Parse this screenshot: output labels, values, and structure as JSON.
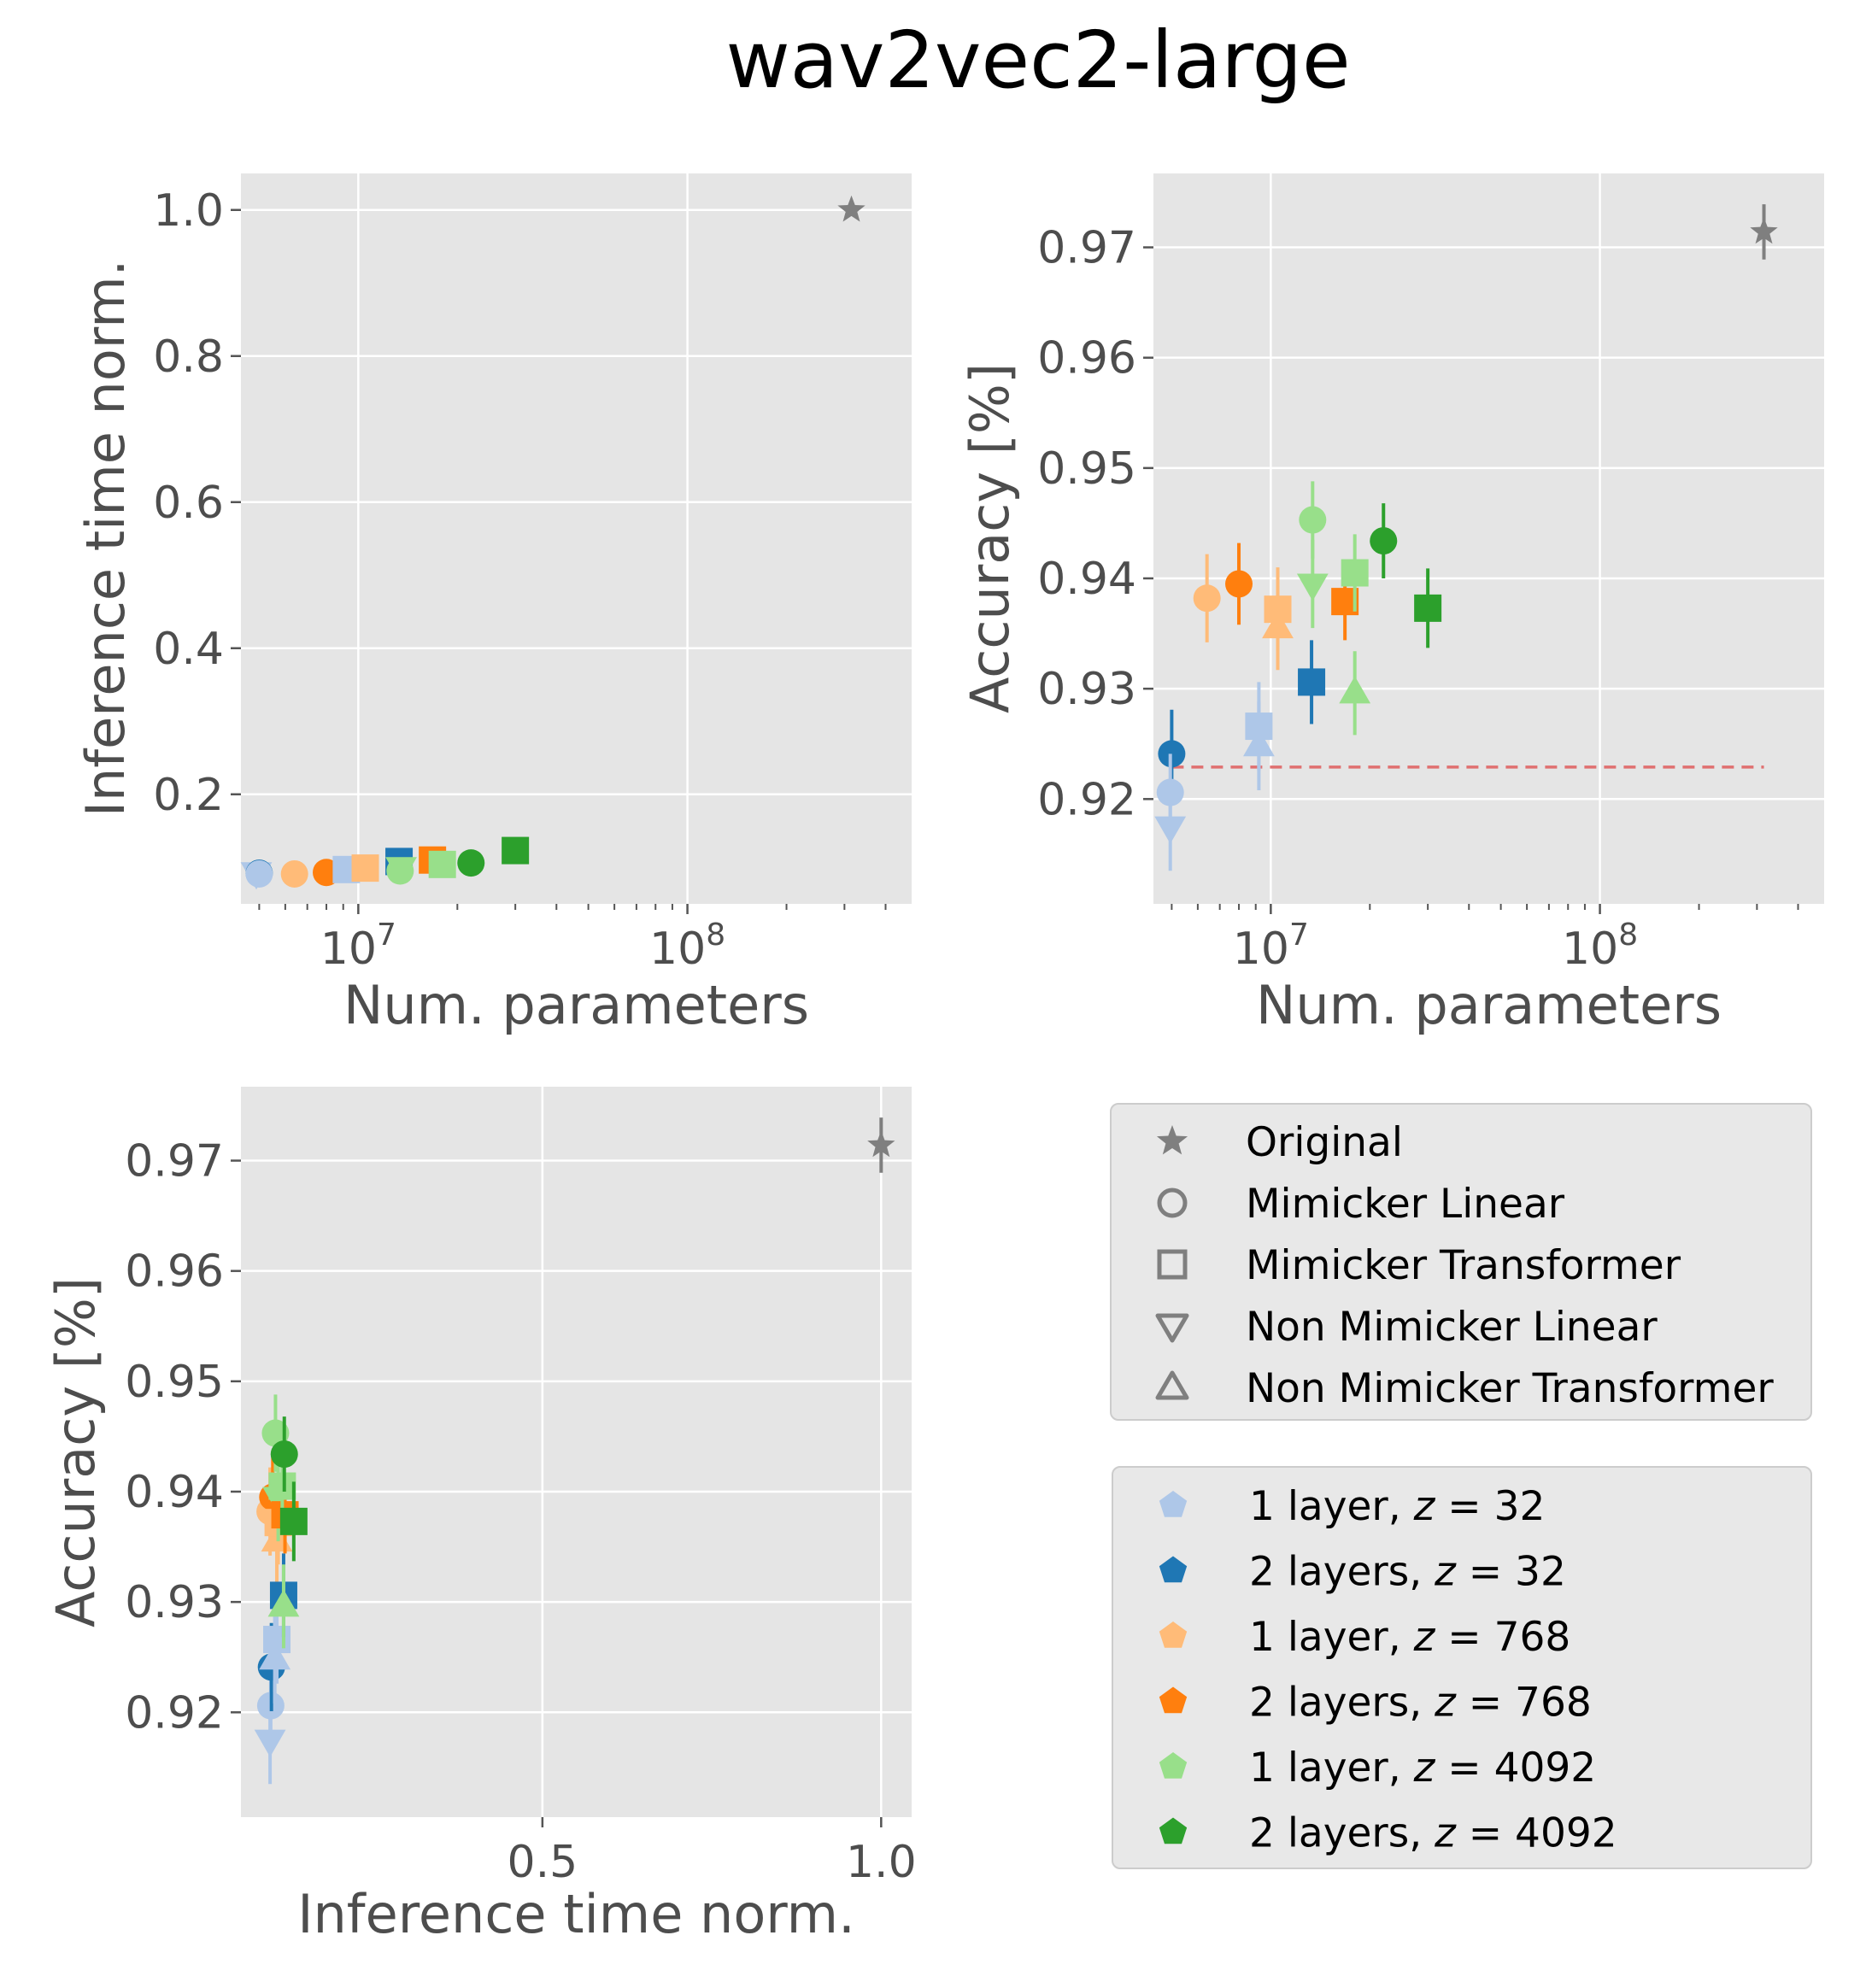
{
  "figure": {
    "title": "wav2vec2-large"
  },
  "markers": {
    "original": "star",
    "mimicker_linear": "circle",
    "mimicker_transformer": "square",
    "non_mimicker_linear": "triangle-down",
    "non_mimicker_transformer": "triangle-up"
  },
  "colors": {
    "original": "#7f7f7f",
    "l1_z32": "#aec7e8",
    "l2_z32": "#1f77b4",
    "l1_z768": "#ffbb78",
    "l2_z768": "#ff7f0e",
    "l1_z4092": "#98df8a",
    "l2_z4092": "#2ca02c",
    "baseline_line": "#e07070"
  },
  "legend_marker": {
    "items": [
      {
        "label": "Original",
        "marker": "star"
      },
      {
        "label": "Mimicker Linear",
        "marker": "circle"
      },
      {
        "label": "Mimicker Transformer",
        "marker": "square"
      },
      {
        "label": "Non Mimicker Linear",
        "marker": "triangle-down"
      },
      {
        "label": "Non Mimicker Transformer",
        "marker": "triangle-up"
      }
    ]
  },
  "legend_color": {
    "items": [
      {
        "prefix": "1 layer, ",
        "var": "z",
        "eq": "32",
        "color": "#aec7e8"
      },
      {
        "prefix": "2 layers, ",
        "var": "z",
        "eq": "32",
        "color": "#1f77b4"
      },
      {
        "prefix": "1 layer, ",
        "var": "z",
        "eq": "768",
        "color": "#ffbb78"
      },
      {
        "prefix": "2 layers, ",
        "var": "z",
        "eq": "768",
        "color": "#ff7f0e"
      },
      {
        "prefix": "1 layer, ",
        "var": "z",
        "eq": "4092",
        "color": "#98df8a"
      },
      {
        "prefix": "2 layers, ",
        "var": "z",
        "eq": "4092",
        "color": "#2ca02c"
      }
    ]
  },
  "chart_data": [
    {
      "type": "scatter",
      "id": "params_vs_time",
      "title": "",
      "xlabel": "Num. parameters",
      "ylabel": "Inference time norm.",
      "xscale": "log",
      "xlim": [
        4400000,
        480000000
      ],
      "ylim": [
        0.05,
        1.05
      ],
      "xticks": [
        {
          "value": 10000000,
          "base": "10",
          "exp": "7"
        },
        {
          "value": 100000000,
          "base": "10",
          "exp": "8"
        }
      ],
      "yticks": [
        {
          "value": 0.2,
          "label": "0.2"
        },
        {
          "value": 0.4,
          "label": "0.4"
        },
        {
          "value": 0.6,
          "label": "0.6"
        },
        {
          "value": 0.8,
          "label": "0.8"
        },
        {
          "value": 1.0,
          "label": "1.0"
        }
      ],
      "grid": true,
      "points": [
        {
          "series": "Original",
          "marker": "star",
          "color": "#7f7f7f",
          "x": 315000000,
          "y": 1.0
        },
        {
          "series": "1 layer, z = 32 — Non Mimicker Linear",
          "marker": "triangle-down",
          "color": "#aec7e8",
          "x": 4900000,
          "y": 0.093
        },
        {
          "series": "2 layers, z = 32 — Mimicker Linear",
          "marker": "circle",
          "color": "#1f77b4",
          "x": 5000000,
          "y": 0.092
        },
        {
          "series": "1 layer, z = 32 — Mimicker Linear",
          "marker": "circle",
          "color": "#aec7e8",
          "x": 5000000,
          "y": 0.091
        },
        {
          "series": "1 layer, z = 768 — Mimicker Linear",
          "marker": "circle",
          "color": "#ffbb78",
          "x": 6400000,
          "y": 0.091
        },
        {
          "series": "2 layers, z = 768 — Mimicker Linear",
          "marker": "circle",
          "color": "#ff7f0e",
          "x": 8000000,
          "y": 0.093
        },
        {
          "series": "1 layer, z = 32 — Mimicker Transformer",
          "marker": "square",
          "color": "#aec7e8",
          "x": 9200000,
          "y": 0.097
        },
        {
          "series": "1 layer, z = 768 — Mimicker Transformer",
          "marker": "square",
          "color": "#ffbb78",
          "x": 10500000,
          "y": 0.099
        },
        {
          "series": "2 layers, z = 32 — Mimicker Transformer",
          "marker": "square",
          "color": "#1f77b4",
          "x": 13300000,
          "y": 0.108
        },
        {
          "series": "1 layer, z = 4092 — Mimicker Linear",
          "marker": "circle",
          "color": "#98df8a",
          "x": 13400000,
          "y": 0.095
        },
        {
          "series": "1 layer, z = 4092 — Non Mimicker Linear",
          "marker": "triangle-down",
          "color": "#98df8a",
          "x": 13500000,
          "y": 0.1
        },
        {
          "series": "2 layers, z = 768 — Mimicker Transformer",
          "marker": "square",
          "color": "#ff7f0e",
          "x": 16800000,
          "y": 0.11
        },
        {
          "series": "1 layer, z = 4092 — Mimicker Transformer",
          "marker": "square",
          "color": "#98df8a",
          "x": 18000000,
          "y": 0.104
        },
        {
          "series": "2 layers, z = 4092 — Mimicker Linear",
          "marker": "circle",
          "color": "#2ca02c",
          "x": 22000000,
          "y": 0.106
        },
        {
          "series": "2 layers, z = 4092 — Mimicker Transformer",
          "marker": "square",
          "color": "#2ca02c",
          "x": 30000000,
          "y": 0.123
        }
      ]
    },
    {
      "type": "scatter",
      "id": "params_vs_accuracy",
      "title": "",
      "xlabel": "Num. parameters",
      "ylabel": "Accuracy [%]",
      "xscale": "log",
      "xlim": [
        4400000,
        480000000
      ],
      "ylim": [
        0.9105,
        0.9767
      ],
      "xticks": [
        {
          "value": 10000000,
          "base": "10",
          "exp": "7"
        },
        {
          "value": 100000000,
          "base": "10",
          "exp": "8"
        }
      ],
      "yticks": [
        {
          "value": 0.92,
          "label": "0.92"
        },
        {
          "value": 0.93,
          "label": "0.93"
        },
        {
          "value": 0.94,
          "label": "0.94"
        },
        {
          "value": 0.95,
          "label": "0.95"
        },
        {
          "value": 0.96,
          "label": "0.96"
        },
        {
          "value": 0.97,
          "label": "0.97"
        }
      ],
      "grid": true,
      "baseline": {
        "y": 0.9229,
        "x_from": 5000000,
        "x_to": 315000000,
        "style": "dashed"
      },
      "points": [
        {
          "series": "Original",
          "marker": "star",
          "color": "#7f7f7f",
          "x": 315000000,
          "y": 0.9714,
          "yerr": 0.0025
        },
        {
          "series": "2 layers, z = 32 — Mimicker Linear",
          "marker": "circle",
          "color": "#1f77b4",
          "x": 5000000,
          "y": 0.9241,
          "yerr": 0.004
        },
        {
          "series": "1 layer, z = 32 — Mimicker Linear",
          "marker": "circle",
          "color": "#aec7e8",
          "x": 4950000,
          "y": 0.9206,
          "yerr": 0.0035
        },
        {
          "series": "1 layer, z = 32 — Non Mimicker Linear",
          "marker": "triangle-down",
          "color": "#aec7e8",
          "x": 4950000,
          "y": 0.9175,
          "yerr": 0.004
        },
        {
          "series": "1 layer, z = 768 — Mimicker Linear",
          "marker": "circle",
          "color": "#ffbb78",
          "x": 6400000,
          "y": 0.9382,
          "yerr": 0.004
        },
        {
          "series": "2 layers, z = 768 — Mimicker Linear",
          "marker": "circle",
          "color": "#ff7f0e",
          "x": 8000000,
          "y": 0.9395,
          "yerr": 0.0037
        },
        {
          "series": "1 layer, z = 32 — Mimicker Transformer",
          "marker": "square",
          "color": "#aec7e8",
          "x": 9200000,
          "y": 0.9266,
          "yerr": 0.004
        },
        {
          "series": "1 layer, z = 32 — Non Mimicker Transformer",
          "marker": "triangle-up",
          "color": "#aec7e8",
          "x": 9200000,
          "y": 0.9248,
          "yerr": 0.004
        },
        {
          "series": "1 layer, z = 768 — Mimicker Transformer",
          "marker": "square",
          "color": "#ffbb78",
          "x": 10500000,
          "y": 0.9372,
          "yerr": 0.0038
        },
        {
          "series": "1 layer, z = 768 — Non Mimicker Transformer",
          "marker": "triangle-up",
          "color": "#ffbb78",
          "x": 10500000,
          "y": 0.9355,
          "yerr": 0.0038
        },
        {
          "series": "2 layers, z = 32 — Mimicker Transformer",
          "marker": "square",
          "color": "#1f77b4",
          "x": 13300000,
          "y": 0.9306,
          "yerr": 0.0038
        },
        {
          "series": "1 layer, z = 4092 — Mimicker Linear",
          "marker": "circle",
          "color": "#98df8a",
          "x": 13400000,
          "y": 0.9453,
          "yerr": 0.0035
        },
        {
          "series": "1 layer, z = 4092 — Non Mimicker Linear",
          "marker": "triangle-down",
          "color": "#98df8a",
          "x": 13400000,
          "y": 0.9395,
          "yerr": 0.004
        },
        {
          "series": "2 layers, z = 768 — Mimicker Transformer",
          "marker": "square",
          "color": "#ff7f0e",
          "x": 16800000,
          "y": 0.9379,
          "yerr": 0.0035
        },
        {
          "series": "1 layer, z = 4092 — Mimicker Transformer",
          "marker": "square",
          "color": "#98df8a",
          "x": 18000000,
          "y": 0.9405,
          "yerr": 0.0035
        },
        {
          "series": "1 layer, z = 4092 — Non Mimicker Transformer",
          "marker": "triangle-up",
          "color": "#98df8a",
          "x": 18000000,
          "y": 0.9296,
          "yerr": 0.0038
        },
        {
          "series": "2 layers, z = 4092 — Mimicker Linear",
          "marker": "circle",
          "color": "#2ca02c",
          "x": 22000000,
          "y": 0.9434,
          "yerr": 0.0034
        },
        {
          "series": "2 layers, z = 4092 — Mimicker Transformer",
          "marker": "square",
          "color": "#2ca02c",
          "x": 30000000,
          "y": 0.9373,
          "yerr": 0.0036
        }
      ]
    },
    {
      "type": "scatter",
      "id": "time_vs_accuracy",
      "title": "",
      "xlabel": "Inference time norm.",
      "ylabel": "Accuracy [%]",
      "xscale": "linear",
      "xlim": [
        0.055,
        1.045
      ],
      "ylim": [
        0.9105,
        0.9767
      ],
      "xticks": [
        {
          "value": 0.5,
          "label": "0.5"
        },
        {
          "value": 1.0,
          "label": "1.0"
        }
      ],
      "yticks": [
        {
          "value": 0.92,
          "label": "0.92"
        },
        {
          "value": 0.93,
          "label": "0.93"
        },
        {
          "value": 0.94,
          "label": "0.94"
        },
        {
          "value": 0.95,
          "label": "0.95"
        },
        {
          "value": 0.96,
          "label": "0.96"
        },
        {
          "value": 0.97,
          "label": "0.97"
        }
      ],
      "grid": true,
      "points": [
        {
          "series": "Original",
          "marker": "star",
          "color": "#7f7f7f",
          "x": 1.0,
          "y": 0.9714,
          "yerr": 0.0025
        },
        {
          "series": "1 layer, z = 32 — Non Mimicker Linear",
          "marker": "triangle-down",
          "color": "#aec7e8",
          "x": 0.098,
          "y": 0.9175,
          "yerr": 0.004
        },
        {
          "series": "1 layer, z = 32 — Mimicker Linear",
          "marker": "circle",
          "color": "#aec7e8",
          "x": 0.099,
          "y": 0.9206,
          "yerr": 0.0035
        },
        {
          "series": "2 layers, z = 32 — Mimicker Linear",
          "marker": "circle",
          "color": "#1f77b4",
          "x": 0.1,
          "y": 0.9241,
          "yerr": 0.004
        },
        {
          "series": "1 layer, z = 32 — Non Mimicker Transformer",
          "marker": "triangle-up",
          "color": "#aec7e8",
          "x": 0.105,
          "y": 0.9248,
          "yerr": 0.004
        },
        {
          "series": "1 layer, z = 32 — Mimicker Transformer",
          "marker": "square",
          "color": "#aec7e8",
          "x": 0.108,
          "y": 0.9266,
          "yerr": 0.004
        },
        {
          "series": "1 layer, z = 768 — Mimicker Linear",
          "marker": "circle",
          "color": "#ffbb78",
          "x": 0.098,
          "y": 0.9382,
          "yerr": 0.004
        },
        {
          "series": "2 layers, z = 768 — Mimicker Linear",
          "marker": "circle",
          "color": "#ff7f0e",
          "x": 0.102,
          "y": 0.9395,
          "yerr": 0.0037
        },
        {
          "series": "1 layer, z = 768 — Non Mimicker Transformer",
          "marker": "triangle-up",
          "color": "#ffbb78",
          "x": 0.108,
          "y": 0.9355,
          "yerr": 0.0038
        },
        {
          "series": "1 layer, z = 768 — Mimicker Transformer",
          "marker": "square",
          "color": "#ffbb78",
          "x": 0.11,
          "y": 0.9372,
          "yerr": 0.0038
        },
        {
          "series": "2 layers, z = 32 — Mimicker Transformer",
          "marker": "square",
          "color": "#1f77b4",
          "x": 0.118,
          "y": 0.9306,
          "yerr": 0.0038
        },
        {
          "series": "1 layer, z = 4092 — Mimicker Linear",
          "marker": "circle",
          "color": "#98df8a",
          "x": 0.106,
          "y": 0.9453,
          "yerr": 0.0035
        },
        {
          "series": "1 layer, z = 4092 — Non Mimicker Linear",
          "marker": "triangle-down",
          "color": "#98df8a",
          "x": 0.11,
          "y": 0.9395,
          "yerr": 0.004
        },
        {
          "series": "2 layers, z = 768 — Mimicker Transformer",
          "marker": "square",
          "color": "#ff7f0e",
          "x": 0.12,
          "y": 0.9379,
          "yerr": 0.0035
        },
        {
          "series": "1 layer, z = 4092 — Mimicker Transformer",
          "marker": "square",
          "color": "#98df8a",
          "x": 0.116,
          "y": 0.9405,
          "yerr": 0.0035
        },
        {
          "series": "1 layer, z = 4092 — Non Mimicker Transformer",
          "marker": "triangle-up",
          "color": "#98df8a",
          "x": 0.118,
          "y": 0.9296,
          "yerr": 0.0038
        },
        {
          "series": "2 layers, z = 4092 — Mimicker Linear",
          "marker": "circle",
          "color": "#2ca02c",
          "x": 0.119,
          "y": 0.9434,
          "yerr": 0.0034
        },
        {
          "series": "2 layers, z = 4092 — Mimicker Transformer",
          "marker": "square",
          "color": "#2ca02c",
          "x": 0.133,
          "y": 0.9373,
          "yerr": 0.0036
        }
      ]
    }
  ]
}
